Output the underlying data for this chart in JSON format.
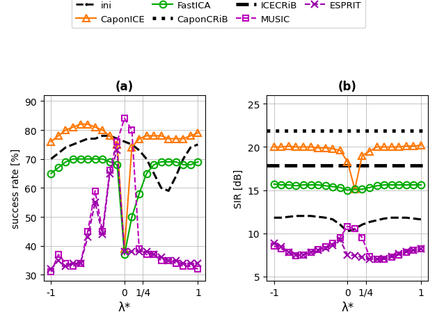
{
  "x_ticks_labels": [
    "-1",
    "0",
    "1/4",
    "1"
  ],
  "x_ticks_vals": [
    -1.0,
    0.0,
    0.25,
    1.0
  ],
  "x_range": [
    -1.1,
    1.1
  ],
  "subplot_a": {
    "title": "(a)",
    "ylabel": "success rate [%]",
    "xlabel": "λ*",
    "ylim": [
      28,
      92
    ],
    "yticks": [
      30,
      40,
      50,
      60,
      70,
      80,
      90
    ],
    "ini": {
      "x": [
        -1.0,
        -0.9,
        -0.8,
        -0.7,
        -0.6,
        -0.5,
        -0.4,
        -0.3,
        -0.2,
        -0.1,
        0.0,
        0.1,
        0.2,
        0.3,
        0.4,
        0.5,
        0.6,
        0.7,
        0.8,
        0.9,
        1.0
      ],
      "y": [
        70,
        72,
        74,
        75,
        76,
        77,
        77,
        78,
        78,
        77,
        76,
        75,
        73,
        70,
        65,
        60,
        59,
        64,
        70,
        74,
        75
      ],
      "color": "#000000",
      "linestyle": "--",
      "linewidth": 2.2,
      "marker": null,
      "markersize": 0
    },
    "CaponICE": {
      "x": [
        -1.0,
        -0.9,
        -0.8,
        -0.7,
        -0.6,
        -0.5,
        -0.4,
        -0.3,
        -0.2,
        -0.1,
        0.0,
        0.1,
        0.2,
        0.3,
        0.4,
        0.5,
        0.6,
        0.7,
        0.8,
        0.9,
        1.0
      ],
      "y": [
        76,
        78,
        80,
        81,
        82,
        82,
        81,
        80,
        78,
        75,
        39,
        74,
        77,
        78,
        78,
        78,
        77,
        77,
        77,
        78,
        79
      ],
      "color": "#FF7700",
      "linestyle": "-",
      "linewidth": 1.5,
      "marker": "^",
      "markersize": 7
    },
    "FastICA": {
      "x": [
        -1.0,
        -0.9,
        -0.8,
        -0.7,
        -0.6,
        -0.5,
        -0.4,
        -0.3,
        -0.2,
        -0.1,
        0.0,
        0.1,
        0.2,
        0.3,
        0.4,
        0.5,
        0.6,
        0.7,
        0.8,
        0.9,
        1.0
      ],
      "y": [
        65,
        67,
        69,
        70,
        70,
        70,
        70,
        70,
        69,
        68,
        37,
        50,
        58,
        65,
        68,
        69,
        69,
        69,
        68,
        68,
        69
      ],
      "color": "#00AA00",
      "linestyle": "-",
      "linewidth": 1.5,
      "marker": "o",
      "markersize": 7
    },
    "MUSIC": {
      "x": [
        -1.0,
        -0.9,
        -0.8,
        -0.7,
        -0.6,
        -0.5,
        -0.4,
        -0.3,
        -0.2,
        -0.1,
        0.0,
        0.1,
        0.2,
        0.3,
        0.4,
        0.5,
        0.6,
        0.7,
        0.8,
        0.9,
        1.0
      ],
      "y": [
        31,
        37,
        34,
        33,
        34,
        45,
        59,
        45,
        66,
        76,
        84,
        80,
        39,
        37,
        37,
        35,
        35,
        34,
        33,
        33,
        32
      ],
      "color": "#BB00BB",
      "linestyle": "--",
      "linewidth": 1.5,
      "marker": "s",
      "markersize": 6
    },
    "ESPRIT": {
      "x": [
        -1.0,
        -0.9,
        -0.8,
        -0.7,
        -0.6,
        -0.5,
        -0.4,
        -0.3,
        -0.2,
        -0.1,
        0.0,
        0.1,
        0.2,
        0.3,
        0.4,
        0.5,
        0.6,
        0.7,
        0.8,
        0.9,
        1.0
      ],
      "y": [
        32,
        35,
        33,
        34,
        34,
        43,
        55,
        44,
        65,
        73,
        38,
        38,
        38,
        38,
        37,
        36,
        35,
        35,
        34,
        34,
        34
      ],
      "color": "#9900AA",
      "linestyle": "--",
      "linewidth": 1.5,
      "marker": "x",
      "markersize": 7
    }
  },
  "subplot_b": {
    "title": "(b)",
    "ylabel": "SIR [dB]",
    "xlabel": "λ*",
    "ylim": [
      4.5,
      26
    ],
    "yticks": [
      5,
      10,
      15,
      20,
      25
    ],
    "CaponCRiB_level": 21.9,
    "ICECRiB_level": 17.9,
    "ini": {
      "x": [
        -1.0,
        -0.9,
        -0.8,
        -0.7,
        -0.6,
        -0.5,
        -0.4,
        -0.3,
        -0.2,
        -0.1,
        0.0,
        0.1,
        0.2,
        0.3,
        0.4,
        0.5,
        0.6,
        0.7,
        0.8,
        0.9,
        1.0
      ],
      "y": [
        11.8,
        11.8,
        11.9,
        12.0,
        12.0,
        12.0,
        11.9,
        11.8,
        11.6,
        11.0,
        10.2,
        10.5,
        11.0,
        11.3,
        11.5,
        11.7,
        11.8,
        11.8,
        11.8,
        11.7,
        11.6
      ],
      "color": "#000000",
      "linestyle": "--",
      "linewidth": 2.2,
      "marker": null,
      "markersize": 0
    },
    "CaponICE": {
      "x": [
        -1.0,
        -0.9,
        -0.8,
        -0.7,
        -0.6,
        -0.5,
        -0.4,
        -0.3,
        -0.2,
        -0.1,
        0.0,
        0.1,
        0.2,
        0.3,
        0.4,
        0.5,
        0.6,
        0.7,
        0.8,
        0.9,
        1.0
      ],
      "y": [
        20.0,
        20.0,
        20.1,
        20.0,
        20.0,
        20.0,
        19.9,
        19.9,
        19.8,
        19.6,
        18.3,
        15.1,
        19.0,
        19.5,
        20.0,
        20.0,
        20.0,
        20.0,
        20.1,
        20.1,
        20.2
      ],
      "color": "#FF7700",
      "linestyle": "-",
      "linewidth": 1.5,
      "marker": "^",
      "markersize": 7
    },
    "FastICA": {
      "x": [
        -1.0,
        -0.9,
        -0.8,
        -0.7,
        -0.6,
        -0.5,
        -0.4,
        -0.3,
        -0.2,
        -0.1,
        0.0,
        0.1,
        0.2,
        0.3,
        0.4,
        0.5,
        0.6,
        0.7,
        0.8,
        0.9,
        1.0
      ],
      "y": [
        15.7,
        15.6,
        15.6,
        15.5,
        15.6,
        15.6,
        15.6,
        15.5,
        15.4,
        15.3,
        15.0,
        15.1,
        15.1,
        15.3,
        15.5,
        15.6,
        15.6,
        15.6,
        15.6,
        15.6,
        15.6
      ],
      "color": "#00AA00",
      "linestyle": "-",
      "linewidth": 1.5,
      "marker": "o",
      "markersize": 7
    },
    "MUSIC": {
      "x": [
        -1.0,
        -0.9,
        -0.8,
        -0.7,
        -0.6,
        -0.5,
        -0.4,
        -0.3,
        -0.2,
        -0.1,
        0.0,
        0.1,
        0.2,
        0.3,
        0.4,
        0.5,
        0.6,
        0.7,
        0.8,
        0.9,
        1.0
      ],
      "y": [
        8.5,
        8.2,
        7.8,
        7.4,
        7.5,
        7.8,
        8.1,
        8.4,
        8.8,
        9.5,
        10.8,
        10.5,
        9.5,
        7.3,
        7.0,
        7.0,
        7.2,
        7.5,
        7.8,
        8.0,
        8.2
      ],
      "color": "#BB00BB",
      "linestyle": "--",
      "linewidth": 1.5,
      "marker": "s",
      "markersize": 6
    },
    "ESPRIT": {
      "x": [
        -1.0,
        -0.9,
        -0.8,
        -0.7,
        -0.6,
        -0.5,
        -0.4,
        -0.3,
        -0.2,
        -0.1,
        0.0,
        0.1,
        0.2,
        0.3,
        0.4,
        0.5,
        0.6,
        0.7,
        0.8,
        0.9,
        1.0
      ],
      "y": [
        8.8,
        8.4,
        7.8,
        7.5,
        7.5,
        7.8,
        8.0,
        8.3,
        8.6,
        9.2,
        7.5,
        7.4,
        7.2,
        7.0,
        7.0,
        7.1,
        7.3,
        7.6,
        7.9,
        8.0,
        8.2
      ],
      "color": "#9900AA",
      "linestyle": "--",
      "linewidth": 1.5,
      "marker": "x",
      "markersize": 7
    }
  },
  "legend": {
    "ini_label": "ini",
    "CaponICE_label": "CaponICE",
    "FastICA_label": "FastICA",
    "CaponCRiB_label": "CaponCRiB",
    "ICECRiB_label": "ICECRiB",
    "MUSIC_label": "MUSIC",
    "ESPRIT_label": "ESPRIT"
  },
  "grid_color": "#BBBBBB",
  "grid_linewidth": 0.6
}
